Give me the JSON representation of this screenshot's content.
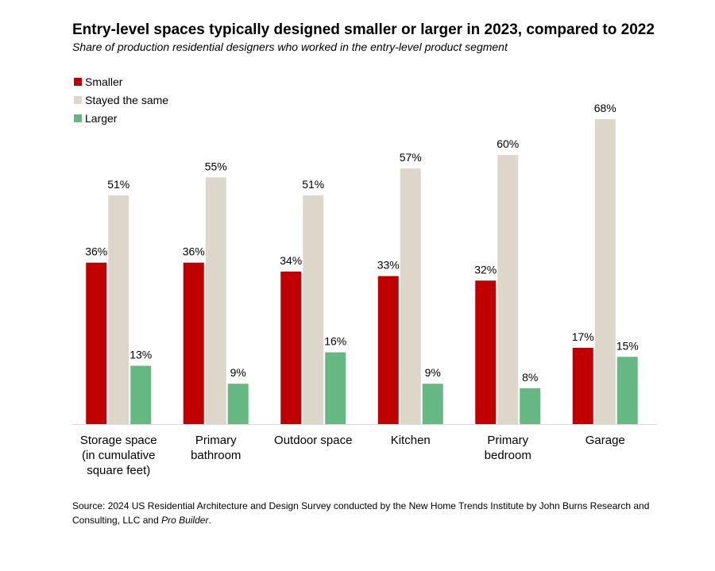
{
  "title": "Entry-level spaces typically designed smaller or larger in 2023, compared to 2022",
  "subtitle": "Share of production residential designers who worked in the entry-level product segment",
  "source": {
    "text": "Source: 2024 US Residential Architecture and Design Survey conducted by the New Home Trends Institute by John Burns Research and Consulting, LLC and ",
    "italic": "Pro Builder",
    "end": "."
  },
  "chart_data": {
    "type": "bar",
    "categories": [
      [
        "Storage space",
        "(in cumulative",
        "square feet)"
      ],
      [
        "Primary",
        "bathroom"
      ],
      [
        "Outdoor space"
      ],
      [
        "Kitchen"
      ],
      [
        "Primary",
        "bedroom"
      ],
      [
        "Garage"
      ]
    ],
    "series": [
      {
        "name": "Smaller",
        "color": "#c00000",
        "values": [
          36,
          36,
          34,
          33,
          32,
          17
        ]
      },
      {
        "name": "Stayed the same",
        "color": "#ddd7cb",
        "values": [
          51,
          55,
          51,
          57,
          60,
          68
        ]
      },
      {
        "name": "Larger",
        "color": "#66b882",
        "values": [
          13,
          9,
          16,
          9,
          8,
          15
        ]
      }
    ],
    "value_suffix": "%",
    "ylim": [
      0,
      68
    ],
    "legend": "top-left",
    "grid": false
  }
}
